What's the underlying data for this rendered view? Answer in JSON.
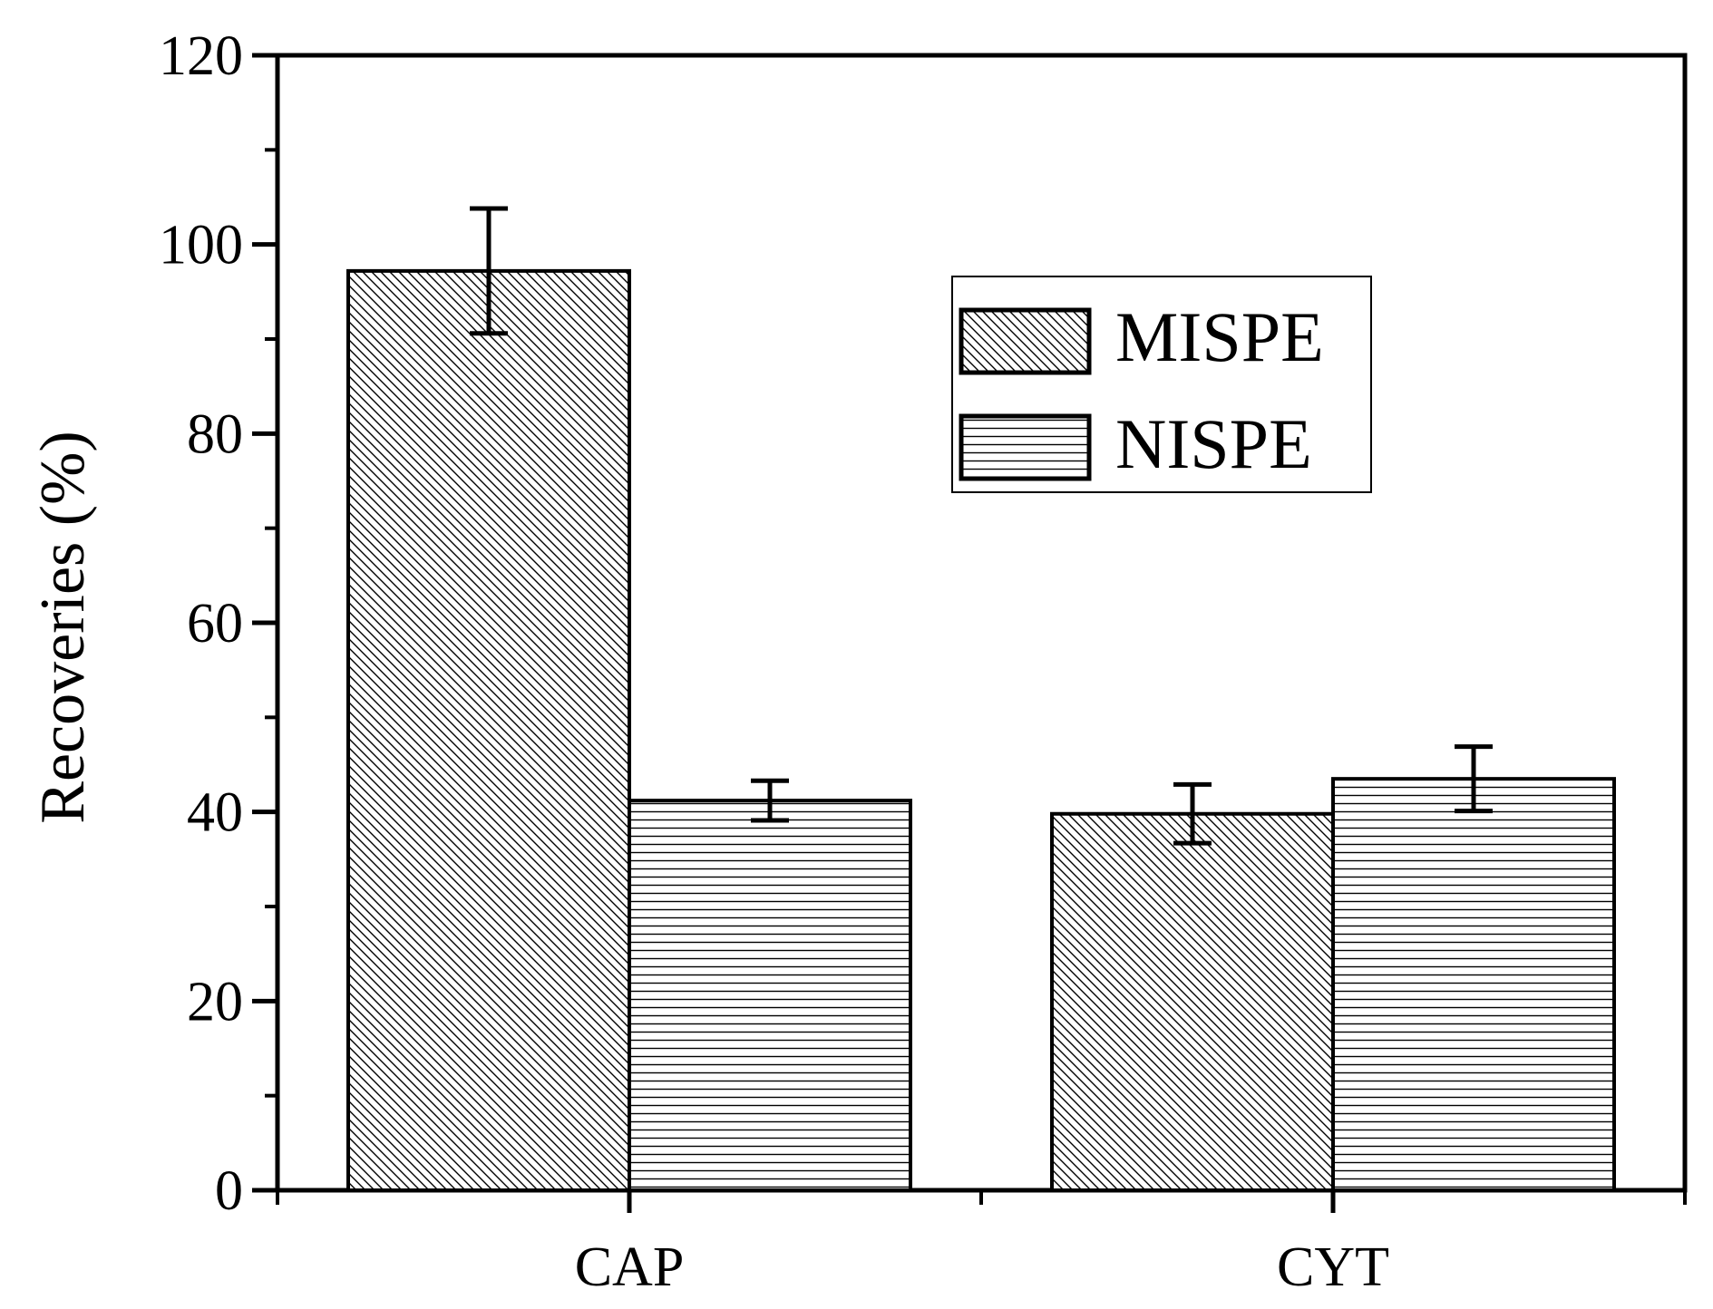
{
  "chart_data": {
    "type": "bar",
    "title": "",
    "xlabel": "",
    "ylabel": "Recoveries (%)",
    "ylim": [
      0,
      120
    ],
    "yticks": [
      0,
      20,
      40,
      60,
      80,
      100,
      120
    ],
    "ytick_labels": [
      "0",
      "20",
      "40",
      "60",
      "80",
      "100",
      "120"
    ],
    "categories": [
      "CAP",
      "CYT"
    ],
    "series": [
      {
        "name": "MISPE",
        "pattern": "diagonal-hatch",
        "values": [
          97.2,
          39.8
        ],
        "errors": [
          6.6,
          3.1
        ]
      },
      {
        "name": "NISPE",
        "pattern": "horizontal-hatch",
        "values": [
          41.2,
          43.5
        ],
        "errors": [
          2.1,
          3.4
        ]
      }
    ],
    "legend_position": "top-right",
    "grid": false
  },
  "colors": {
    "stroke": "#000000",
    "fill": "#ffffff"
  }
}
